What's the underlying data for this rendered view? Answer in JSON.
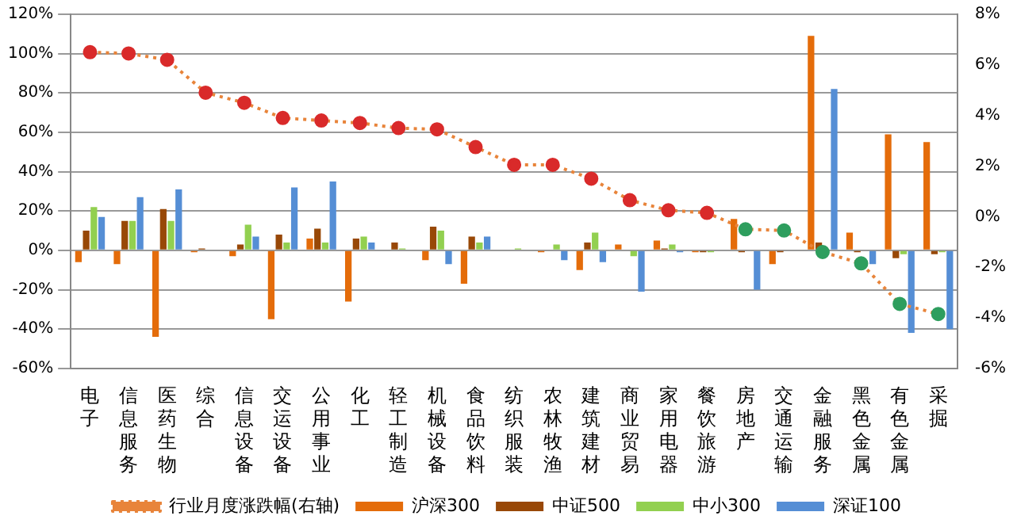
{
  "chart_data": {
    "type": "bar",
    "categories": [
      "电子",
      "信息服务",
      "医药生物",
      "综合",
      "信息设备",
      "交运设备",
      "公用事业",
      "化工",
      "轻工制造",
      "机械设备",
      "食品饮料",
      "纺织服装",
      "农林牧渔",
      "建筑建材",
      "商业贸易",
      "家用电器",
      "餐饮旅游",
      "房地产",
      "交通运输",
      "金融服务",
      "黑色金属",
      "有色金属",
      "采掘"
    ],
    "series": [
      {
        "name": "沪深300",
        "color": "#e46c0a",
        "values": [
          -6,
          -7,
          -44,
          -1,
          -3,
          -35,
          6,
          -26,
          0,
          -5,
          -17,
          0,
          -1,
          -10,
          3,
          5,
          -1,
          16,
          -7,
          109,
          9,
          59,
          55
        ]
      },
      {
        "name": "中证500",
        "color": "#984807",
        "values": [
          10,
          15,
          21,
          1,
          3,
          8,
          11,
          6,
          4,
          12,
          7,
          0,
          0,
          4,
          0,
          1,
          -1,
          -1,
          -1,
          4,
          -1,
          -4,
          -2
        ]
      },
      {
        "name": "中小300",
        "color": "#92d050",
        "values": [
          22,
          15,
          15,
          0,
          13,
          4,
          4,
          7,
          1,
          10,
          4,
          1,
          3,
          9,
          -3,
          3,
          -1,
          0,
          0,
          0,
          0,
          -2,
          -1
        ]
      },
      {
        "name": "深证100",
        "color": "#558ed5",
        "values": [
          17,
          27,
          31,
          0,
          7,
          32,
          35,
          4,
          0,
          -7,
          7,
          0,
          -5,
          -6,
          -21,
          -1,
          0,
          -20,
          0,
          82,
          -7,
          -42,
          -40
        ]
      },
      {
        "name": "行业月度涨跌幅(右轴)",
        "type": "line",
        "axis": "y2",
        "color": "#e8843a",
        "line_style": "dotted",
        "marker": "circle",
        "colors": [
          "#d92a2a",
          "#d92a2a",
          "#d92a2a",
          "#d92a2a",
          "#d92a2a",
          "#d92a2a",
          "#d92a2a",
          "#d92a2a",
          "#d92a2a",
          "#d92a2a",
          "#d92a2a",
          "#d92a2a",
          "#d92a2a",
          "#d92a2a",
          "#d92a2a",
          "#d92a2a",
          "#d92a2a",
          "#2e9e5e",
          "#2e9e5e",
          "#2e9e5e",
          "#2e9e5e",
          "#2e9e5e",
          "#2e9e5e"
        ],
        "values": [
          6.5,
          6.45,
          6.2,
          4.9,
          4.5,
          3.9,
          3.8,
          3.7,
          3.5,
          3.45,
          2.75,
          2.05,
          2.05,
          1.5,
          0.65,
          0.25,
          0.15,
          -0.5,
          -0.55,
          -1.4,
          -1.85,
          -3.45,
          -3.85
        ]
      }
    ],
    "ylim": [
      -60,
      120
    ],
    "yticks": [
      {
        "value": -60,
        "label": "-60%"
      },
      {
        "value": -40,
        "label": "-40%"
      },
      {
        "value": -20,
        "label": "-20%"
      },
      {
        "value": 0,
        "label": "0%"
      },
      {
        "value": 20,
        "label": "20%"
      },
      {
        "value": 40,
        "label": "40%"
      },
      {
        "value": 60,
        "label": "60%"
      },
      {
        "value": 80,
        "label": "80%"
      },
      {
        "value": 100,
        "label": "100%"
      },
      {
        "value": 120,
        "label": "120%"
      }
    ],
    "y2lim": [
      -6,
      8
    ],
    "y2ticks": [
      {
        "value": -6,
        "label": "-6%"
      },
      {
        "value": -4,
        "label": "-4%"
      },
      {
        "value": -2,
        "label": "-2%"
      },
      {
        "value": 0,
        "label": "0%"
      },
      {
        "value": 2,
        "label": "2%"
      },
      {
        "value": 4,
        "label": "4%"
      },
      {
        "value": 6,
        "label": "6%"
      },
      {
        "value": 8,
        "label": "8%"
      }
    ],
    "grid": "y",
    "legend": "bottom"
  }
}
